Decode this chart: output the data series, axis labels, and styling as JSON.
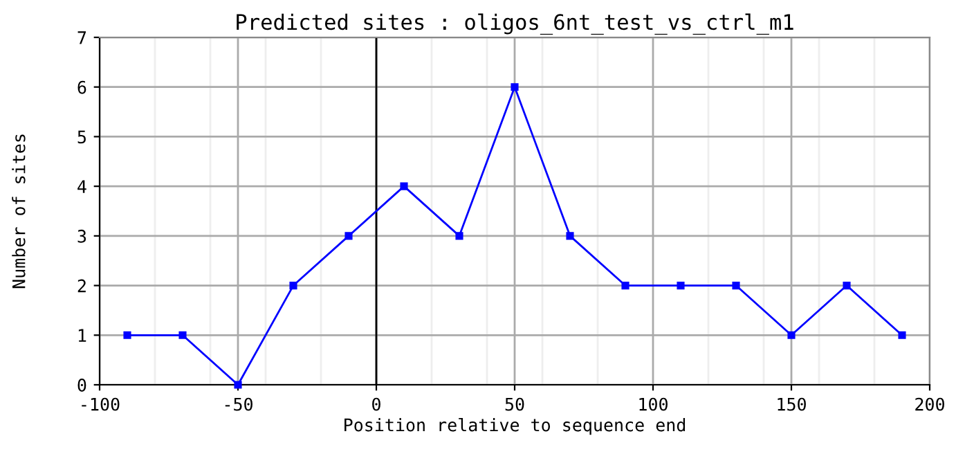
{
  "chart_data": {
    "type": "line",
    "title": "Predicted sites : oligos_6nt_test_vs_ctrl_m1",
    "xlabel": "Position relative to sequence end",
    "ylabel": "Number of sites",
    "x": [
      -90,
      -70,
      -50,
      -30,
      -10,
      10,
      30,
      50,
      70,
      90,
      110,
      130,
      150,
      170,
      190
    ],
    "series": [
      {
        "color": "#0000ff",
        "values": [
          1,
          1,
          0,
          2,
          3,
          4,
          3,
          6,
          3,
          2,
          2,
          2,
          1,
          2,
          1
        ]
      }
    ],
    "xlim": [
      -100,
      200
    ],
    "xticks": [
      -100,
      -50,
      0,
      50,
      100,
      150,
      200
    ],
    "ylim": [
      0,
      7
    ],
    "yticks": [
      0,
      1,
      2,
      3,
      4,
      5,
      6,
      7
    ],
    "ref_lines": [
      {
        "axis": "x",
        "value": 0,
        "color": "#000000"
      }
    ],
    "grid": true,
    "marker": "square",
    "line_style": "solid"
  }
}
